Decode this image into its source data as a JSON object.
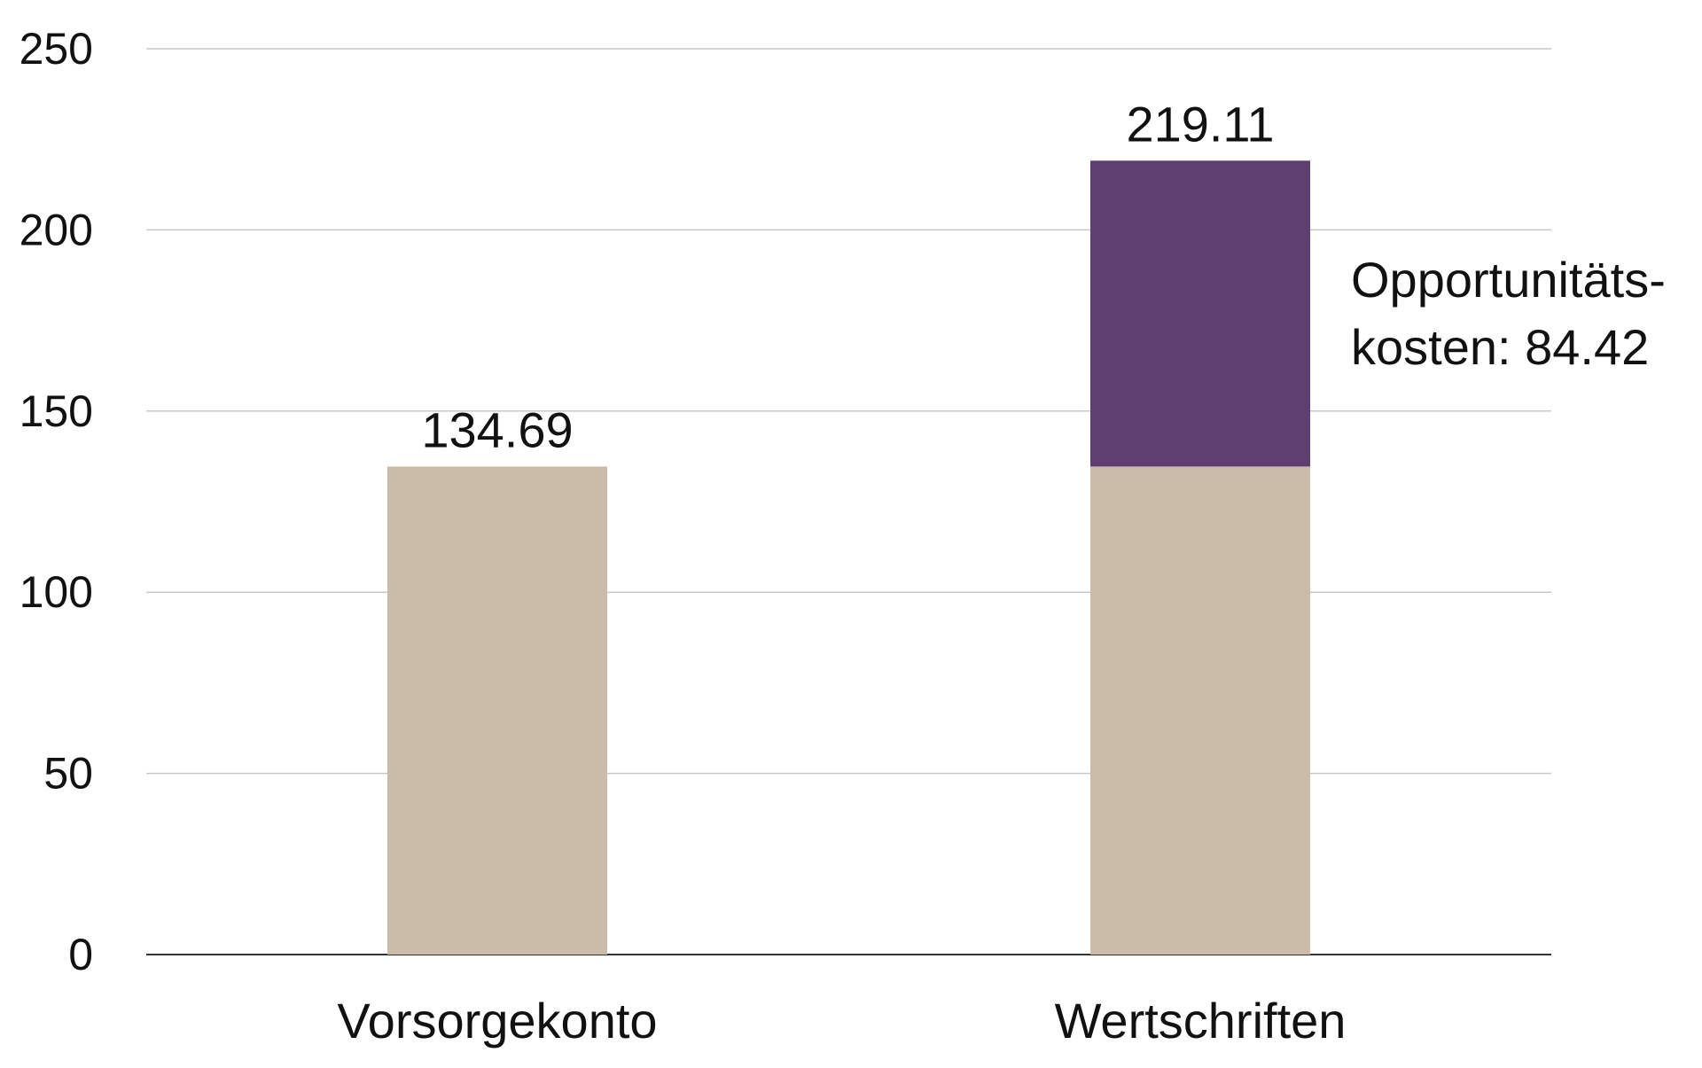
{
  "chart_data": {
    "type": "bar",
    "stacked": true,
    "categories": [
      "Vorsorgekonto",
      "Wertschriften"
    ],
    "series": [
      {
        "values": [
          134.69,
          134.69
        ],
        "color": "#cbbba9"
      },
      {
        "values": [
          0,
          84.42
        ],
        "color": "#5f3f6f"
      }
    ],
    "totals": [
      134.69,
      219.11
    ],
    "total_labels": [
      "134.69",
      "219.11"
    ],
    "annotation": {
      "category": "Wertschriften",
      "lines": [
        "Opportunitäts-",
        "kosten: 84.42"
      ]
    },
    "ylim": [
      0,
      250
    ],
    "yticks": [
      0,
      50,
      100,
      150,
      200,
      250
    ],
    "ytick_labels": [
      "0",
      "50",
      "100",
      "150",
      "200",
      "250"
    ],
    "grid": true,
    "title": "",
    "xlabel": "",
    "ylabel": "",
    "colors": {
      "grid": "#c8c8c8",
      "axis": "#333333",
      "text": "#111111"
    }
  }
}
